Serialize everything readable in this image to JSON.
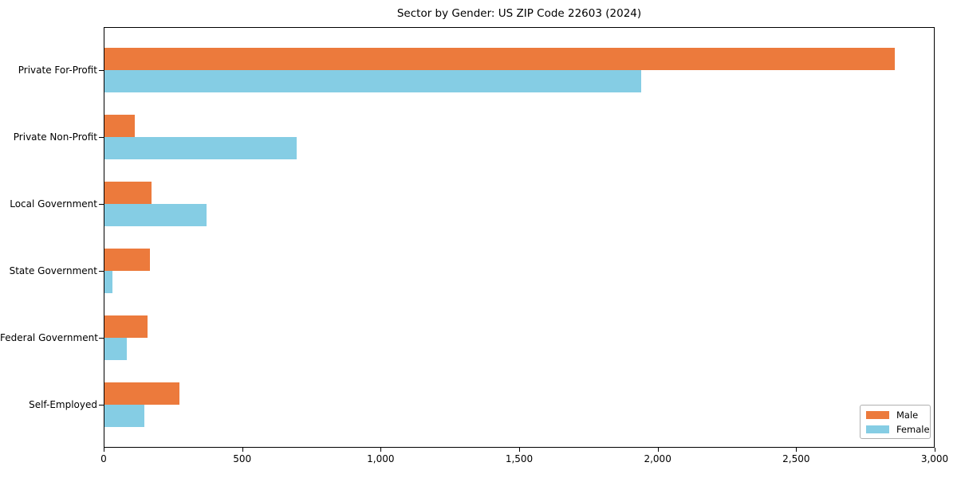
{
  "chart_data": {
    "type": "bar",
    "orientation": "horizontal",
    "title": "Sector by Gender: US ZIP Code 22603 (2024)",
    "xlabel": "",
    "ylabel": "",
    "categories": [
      "Private For-Profit",
      "Private Non-Profit",
      "Local Government",
      "State Government",
      "Federal Government",
      "Self-Employed"
    ],
    "series": [
      {
        "name": "Male",
        "color": "#EC7A3C",
        "values": [
          2860,
          110,
          170,
          165,
          155,
          270
        ]
      },
      {
        "name": "Female",
        "color": "#85CDE4",
        "values": [
          1940,
          695,
          370,
          30,
          80,
          145
        ]
      }
    ],
    "xlim": [
      0,
      3000
    ],
    "xticks": [
      0,
      500,
      1000,
      1500,
      2000,
      2500,
      3000
    ],
    "xtick_labels": [
      "0",
      "500",
      "1,000",
      "1,500",
      "2,000",
      "2,500",
      "3,000"
    ],
    "grid": false,
    "legend": {
      "position": "lower right",
      "entries": [
        "Male",
        "Female"
      ],
      "border_color": "#b0b0b0"
    },
    "background_color": "#ffffff",
    "axis_color": "#000000"
  }
}
